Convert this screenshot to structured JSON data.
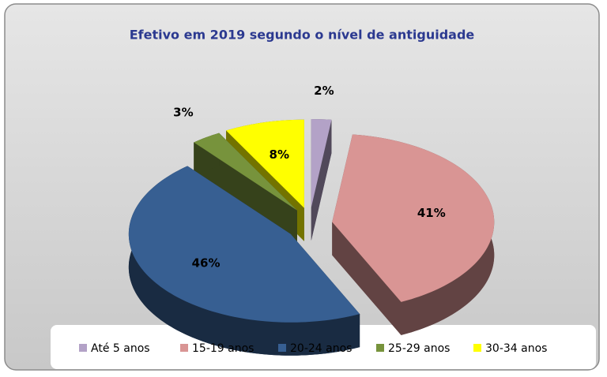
{
  "chart_data": {
    "type": "pie",
    "title": "Efetivo em 2019 segundo o nível de  antiguidade",
    "categories": [
      "Até 5 anos",
      "15-19 anos",
      "20-24 anos",
      "25-29 anos",
      "30-34 anos"
    ],
    "values": [
      2,
      41,
      46,
      3,
      8
    ],
    "value_labels": [
      "2%",
      "41%",
      "46%",
      "3%",
      "8%"
    ],
    "colors": [
      "#b3a2c7",
      "#d99594",
      "#375f92",
      "#77933c",
      "#ffff00"
    ],
    "legend": "bottom"
  }
}
